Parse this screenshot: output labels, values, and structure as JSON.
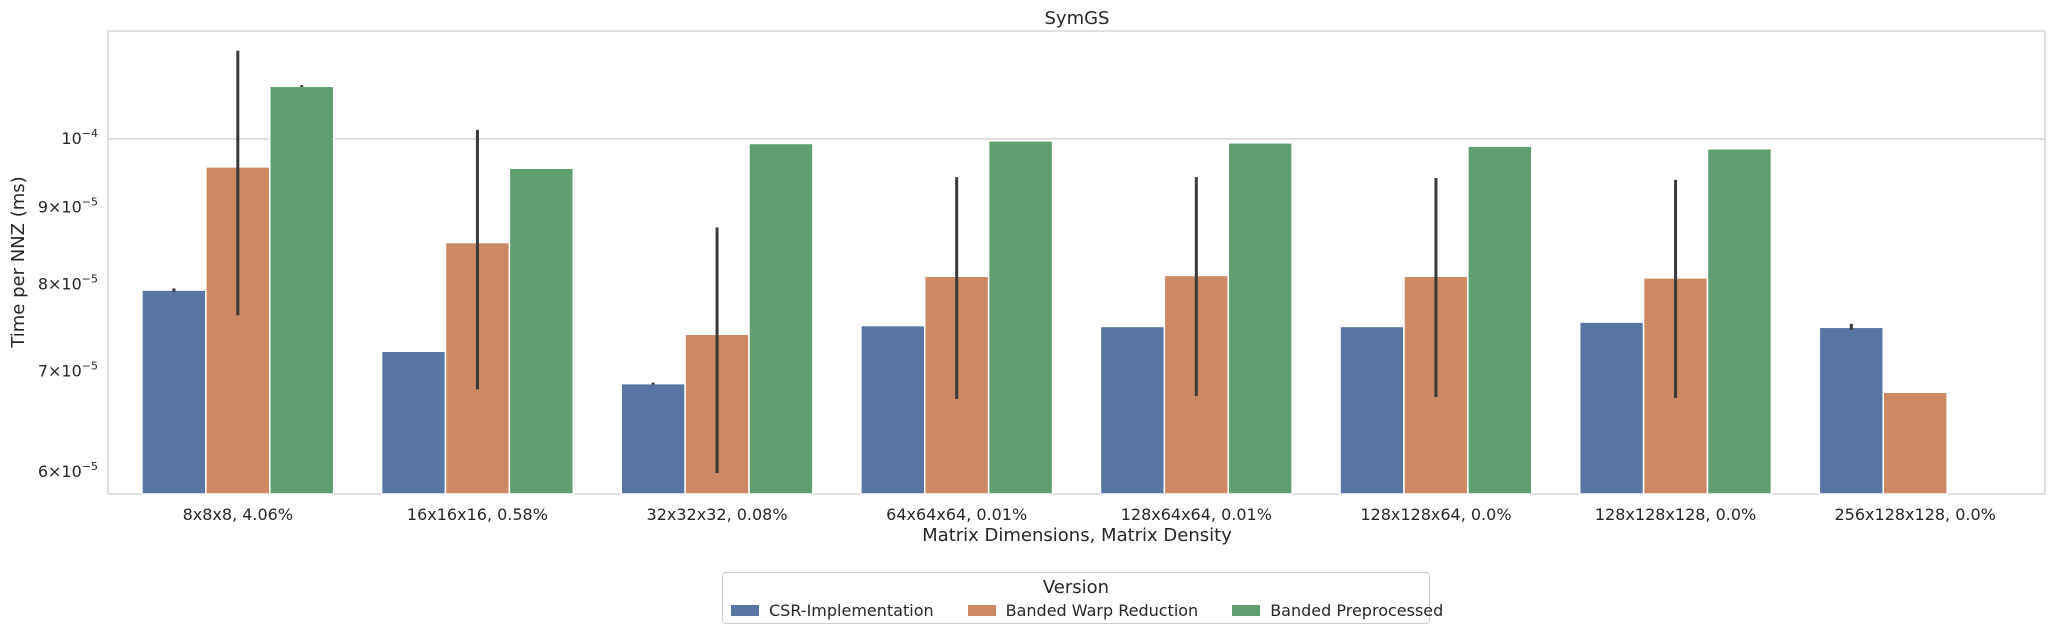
{
  "chart_data": {
    "type": "bar",
    "title": "SymGS",
    "xlabel": "Matrix Dimensions, Matrix Density",
    "ylabel": "Time per NNZ (ms)",
    "yscale": "log",
    "ylim": [
      5.8e-05,
      0.000118
    ],
    "grid": "horizontal",
    "yticks": [
      {
        "value": 6e-05,
        "mant": "6",
        "exp": "−5"
      },
      {
        "value": 7e-05,
        "mant": "7",
        "exp": "−5"
      },
      {
        "value": 8e-05,
        "mant": "8",
        "exp": "−5"
      },
      {
        "value": 9e-05,
        "mant": "9",
        "exp": "−5"
      },
      {
        "value": 0.0001,
        "mant": "",
        "exp": "−4"
      }
    ],
    "categories": [
      "8x8x8, 4.06%",
      "16x16x16, 0.58%",
      "32x32x32, 0.08%",
      "64x64x64, 0.01%",
      "128x64x64, 0.01%",
      "128x128x64, 0.0%",
      "128x128x128, 0.0%",
      "256x128x128, 0.0%"
    ],
    "series": [
      {
        "name": "CSR-Implementation",
        "color": "#5875a4",
        "values": [
          7.93e-05,
          7.22e-05,
          6.87e-05,
          7.51e-05,
          7.5e-05,
          7.5e-05,
          7.55e-05,
          7.49e-05
        ],
        "err_low": [
          7.91e-05,
          null,
          6.86e-05,
          null,
          null,
          null,
          null,
          7.46e-05
        ],
        "err_high": [
          7.95e-05,
          null,
          6.88e-05,
          null,
          null,
          null,
          null,
          7.53e-05
        ]
      },
      {
        "name": "Banded Warp Reduction",
        "color": "#cc8963",
        "values": [
          9.58e-05,
          8.53e-05,
          7.41e-05,
          8.1e-05,
          8.11e-05,
          8.1e-05,
          8.08e-05,
          6.78e-05
        ],
        "err_low": [
          7.63e-05,
          6.81e-05,
          5.99e-05,
          6.71e-05,
          6.74e-05,
          6.73e-05,
          6.72e-05,
          null
        ],
        "err_high": [
          0.0001145,
          0.0001014,
          8.73e-05,
          9.43e-05,
          9.43e-05,
          9.42e-05,
          9.39e-05,
          null
        ]
      },
      {
        "name": "Banded Preprocessed",
        "color": "#5f9e6e",
        "values": [
          0.0001084,
          9.56e-05,
          9.93e-05,
          9.97e-05,
          9.94e-05,
          9.89e-05,
          9.85e-05,
          null
        ],
        "err_low": [
          0.0001083,
          null,
          null,
          null,
          null,
          null,
          null,
          null
        ],
        "err_high": [
          0.0001086,
          null,
          null,
          null,
          null,
          null,
          null,
          null
        ]
      }
    ],
    "legend": {
      "title": "Version",
      "placement": "bottom-center"
    }
  }
}
